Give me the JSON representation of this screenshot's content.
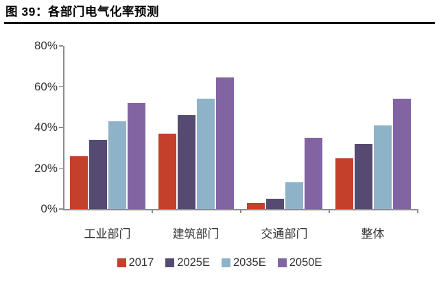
{
  "header": {
    "title": "图 39：各部门电气化率预测"
  },
  "chart_data": {
    "type": "bar",
    "title": "各部门电气化率预测",
    "categories": [
      "工业部门",
      "建筑部门",
      "交通部门",
      "整体"
    ],
    "series": [
      {
        "name": "2017",
        "color": "#c3402b",
        "values": [
          26,
          37,
          3,
          25
        ]
      },
      {
        "name": "2025E",
        "color": "#564a72",
        "values": [
          34,
          46,
          5,
          32
        ]
      },
      {
        "name": "2035E",
        "color": "#8eb3c9",
        "values": [
          43,
          54,
          13,
          41
        ]
      },
      {
        "name": "2050E",
        "color": "#8264a2",
        "values": [
          52,
          64.5,
          35,
          54
        ]
      }
    ],
    "xlabel": "",
    "ylabel": "",
    "ylim": [
      0,
      80
    ],
    "y_ticks": [
      "0%",
      "20%",
      "40%",
      "60%",
      "80%"
    ],
    "y_tick_values": [
      0,
      20,
      40,
      60,
      80
    ],
    "grid": false,
    "legend_position": "bottom"
  },
  "colors": {
    "axis": "#8c8c8c",
    "text": "#333333",
    "title": "#000000",
    "background": "#ffffff"
  }
}
